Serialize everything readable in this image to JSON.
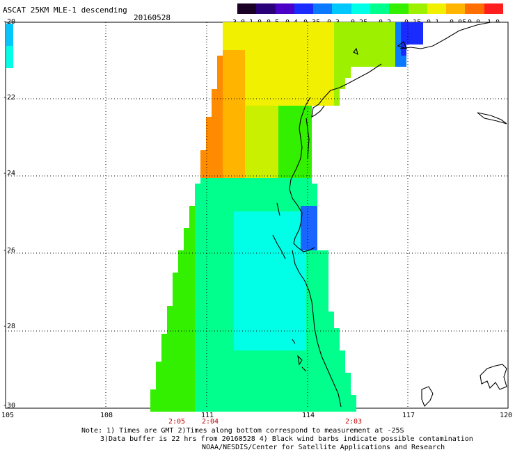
{
  "header": {
    "title": "ASCAT 25KM MLE-1 descending",
    "date": "20160528"
  },
  "colorbar": {
    "labels": [
      "-3.0",
      "-1.0",
      "-0.5",
      "-0.4",
      "-0.35",
      "-0.3",
      "-0.25",
      "-0.2",
      "-0.15",
      "-0.1",
      "-0.05",
      "0.0",
      "1.0"
    ],
    "colors": [
      "#1a0022",
      "#2a0078",
      "#4b00c8",
      "#1a2bff",
      "#0a78ff",
      "#00c8ff",
      "#00ffe6",
      "#00ff8c",
      "#32f000",
      "#9cf000",
      "#f0f000",
      "#ffb400",
      "#ff6e00",
      "#ff1e1e"
    ]
  },
  "axes": {
    "lat_labels": [
      "-20",
      "-22",
      "-24",
      "-26",
      "-28",
      "-30"
    ],
    "lon_labels": [
      "105",
      "108",
      "111",
      "114",
      "117",
      "120"
    ]
  },
  "pass_times": [
    "2:05",
    "2:04",
    "2:03"
  ],
  "notes": [
    "Note: 1) Times are GMT 2)Times along bottom correspond to measurement at -25S",
    "3)Data buffer is 22 hrs from 20160528 4) Black wind barbs indicate possible contamination",
    "NOAA/NESDIS/Center for Satellite Applications and Research"
  ]
}
